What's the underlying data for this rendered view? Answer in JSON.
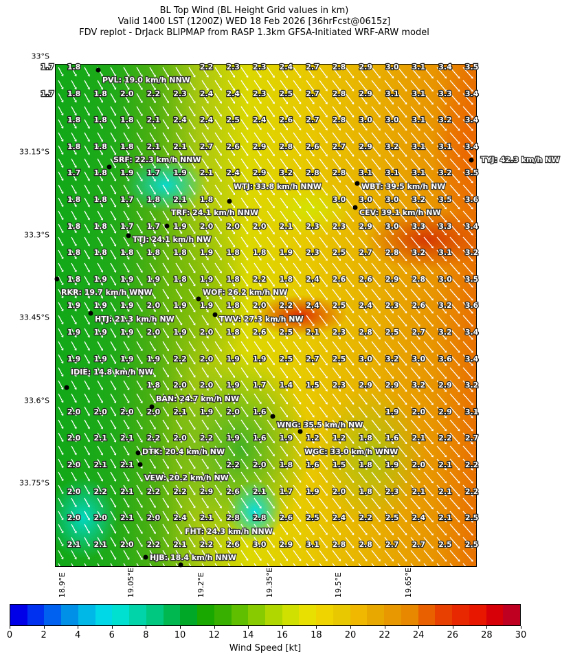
{
  "title": {
    "line1": "BL Top Wind (BL Height Grid values in km)",
    "line2": "Valid 1400 LST (1200Z) WED 18 Feb 2026 [36hrFcst@0615z]",
    "line3": "FDV replot - DrJack BLIPMAP from RASP 1.3km GFSA-Initiated WRF-ARW model"
  },
  "axes": {
    "y_labels": [
      "33°S",
      "33.15°S",
      "33.3°S",
      "33.45°S",
      "33.6°S",
      "33.75°S"
    ],
    "x_labels": [
      "18.9°E",
      "19.05°E",
      "19.2°E",
      "19.35°E",
      "19.5°E",
      "19.65°E"
    ]
  },
  "grid_values": [
    [
      "1.7",
      "1.8",
      null,
      null,
      null,
      null,
      "2.2",
      "2.3",
      "2.3",
      "2.4",
      "2.7",
      "2.8",
      "2.9",
      "3.0",
      "3.1",
      "3.4",
      "3.5"
    ],
    [
      "1.7",
      "1.8",
      "1.8",
      "2.0",
      "2.2",
      "2.3",
      "2.4",
      "2.4",
      "2.3",
      "2.5",
      "2.7",
      "2.8",
      "2.9",
      "3.1",
      "3.1",
      "3.3",
      "3.4"
    ],
    [
      null,
      "1.8",
      "1.8",
      "1.8",
      "2.1",
      "2.4",
      "2.4",
      "2.5",
      "2.4",
      "2.6",
      "2.7",
      "2.8",
      "3.0",
      "3.0",
      "3.1",
      "3.2",
      "3.4"
    ],
    [
      null,
      "1.8",
      "1.8",
      "1.8",
      "2.1",
      "2.1",
      "2.7",
      "2.6",
      "2.9",
      "2.8",
      "2.6",
      "2.7",
      "2.9",
      "3.2",
      "3.1",
      "3.1",
      "3.4"
    ],
    [
      null,
      "1.7",
      "1.8",
      "1.9",
      "1.7",
      "1.9",
      "2.1",
      "2.4",
      "2.9",
      "3.2",
      "2.8",
      "2.8",
      "3.1",
      "3.1",
      "3.1",
      "3.2",
      "3.5"
    ],
    [
      null,
      "1.8",
      "1.8",
      "1.7",
      "1.8",
      "2.1",
      "1.8",
      null,
      null,
      null,
      null,
      "3.0",
      "3.0",
      "3.0",
      "3.2",
      "3.5",
      "3.6"
    ],
    [
      null,
      "1.8",
      "1.8",
      "1.7",
      "1.7",
      "1.9",
      "2.0",
      "2.0",
      "2.0",
      "2.1",
      "2.3",
      "2.3",
      "2.9",
      "3.0",
      "3.3",
      "3.3",
      "3.4"
    ],
    [
      null,
      "1.8",
      "1.8",
      "1.8",
      "1.8",
      "1.8",
      "1.9",
      "1.8",
      "1.8",
      "1.9",
      "2.3",
      "2.5",
      "2.7",
      "2.8",
      "3.2",
      "3.1",
      "3.2"
    ],
    [
      null,
      "1.8",
      "1.9",
      "1.9",
      "1.9",
      "1.8",
      "1.9",
      "1.8",
      "2.2",
      "1.8",
      "2.4",
      "2.6",
      "2.6",
      "2.9",
      "2.8",
      "3.0",
      "3.5"
    ],
    [
      null,
      "1.9",
      "1.9",
      "1.9",
      "2.0",
      "1.9",
      "1.9",
      "1.8",
      "2.0",
      "2.2",
      "2.4",
      "2.5",
      "2.4",
      "2.3",
      "2.6",
      "3.2",
      "3.6"
    ],
    [
      null,
      "1.9",
      "1.9",
      "1.9",
      "2.0",
      "1.9",
      "2.0",
      "1.8",
      "2.6",
      "2.5",
      "2.1",
      "2.3",
      "2.8",
      "2.5",
      "2.7",
      "3.2",
      "3.4"
    ],
    [
      null,
      "1.9",
      "1.9",
      "1.9",
      "1.9",
      "2.2",
      "2.0",
      "1.9",
      "1.9",
      "2.5",
      "2.7",
      "2.5",
      "3.0",
      "3.2",
      "3.0",
      "3.6",
      "3.4"
    ],
    [
      null,
      null,
      null,
      null,
      "1.8",
      "2.0",
      "2.0",
      "1.9",
      "1.7",
      "1.4",
      "1.5",
      "2.3",
      "2.9",
      "2.9",
      "3.2",
      "2.9",
      "3.2"
    ],
    [
      null,
      "2.0",
      "2.0",
      "2.0",
      "2.0",
      "2.1",
      "1.9",
      "2.0",
      "1.6",
      null,
      null,
      null,
      null,
      "1.9",
      "2.0",
      "2.9",
      "3.1"
    ],
    [
      null,
      "2.0",
      "2.1",
      "2.1",
      "2.2",
      "2.0",
      "2.2",
      "1.9",
      "1.6",
      "1.9",
      "1.2",
      "1.2",
      "1.8",
      "1.6",
      "2.1",
      "2.2",
      "2.7"
    ],
    [
      null,
      "2.0",
      "2.1",
      "2.1",
      null,
      null,
      null,
      "2.2",
      "2.0",
      "1.8",
      "1.6",
      "1.5",
      "1.8",
      "1.9",
      "2.0",
      "2.1",
      "2.2"
    ],
    [
      null,
      "2.0",
      "2.2",
      "2.1",
      "2.2",
      "2.2",
      "2.9",
      "2.6",
      "2.1",
      "1.7",
      "1.9",
      "2.0",
      "1.8",
      "2.3",
      "2.1",
      "2.1",
      "2.2"
    ],
    [
      null,
      "2.0",
      "2.0",
      "2.1",
      "2.0",
      "2.4",
      "2.1",
      "2.8",
      "2.8",
      "2.6",
      "2.5",
      "2.4",
      "2.2",
      "2.5",
      "2.4",
      "2.1",
      "2.5"
    ],
    [
      null,
      "2.1",
      "2.1",
      "2.0",
      "2.2",
      "2.1",
      "2.2",
      "2.6",
      "3.0",
      "2.9",
      "3.1",
      "2.8",
      "2.8",
      "2.7",
      "2.7",
      "2.5",
      "2.5"
    ]
  ],
  "stations": [
    {
      "label": "PVL: 19.0 km/h NNW"
    },
    {
      "label": "SRF: 22.3 km/h NNW"
    },
    {
      "label": "TYJ: 42.3 km/h NW"
    },
    {
      "label": "WBT: 39.5 km/h NW"
    },
    {
      "label": "WTJ: 33.8 km/h NNW"
    },
    {
      "label": "CEV: 39.1 km/h NW"
    },
    {
      "label": "TRF: 24.1 km/h NNW"
    },
    {
      "label": "TTJ: 24.1 km/h NW"
    },
    {
      "label": "RKR: 19.7 km/h WNW"
    },
    {
      "label": "WOF: 26.2 km/h NW"
    },
    {
      "label": "HTJ: 21.3 km/h NW"
    },
    {
      "label": "TWV: 27.3 km/h NW"
    },
    {
      "label": "IDIE: 14.8 km/h NW"
    },
    {
      "label": "BAN: 24.7 km/h NW"
    },
    {
      "label": "WNG: 35.5 km/h NW"
    },
    {
      "label": "WGC: 33.0 km/h WNW"
    },
    {
      "label": "DTK: 20.4 km/h NW"
    },
    {
      "label": "VEW: 20.2 km/h NW"
    },
    {
      "label": "HJB: 18.4 km/h NNW"
    },
    {
      "label": "FHT: 24.3 km/h NNW"
    }
  ],
  "colorbar": {
    "label": "Wind Speed [kt]",
    "range": [
      0,
      30
    ],
    "tick_labels": [
      "0",
      "2",
      "4",
      "6",
      "8",
      "10",
      "12",
      "14",
      "16",
      "18",
      "20",
      "22",
      "24",
      "26",
      "28",
      "30"
    ],
    "colors": [
      "#0000e8",
      "#0030f0",
      "#0060f0",
      "#0090e8",
      "#00b8e8",
      "#00d8e8",
      "#00e0d0",
      "#00d4a8",
      "#00c880",
      "#00b850",
      "#00a828",
      "#18a800",
      "#38b000",
      "#60c000",
      "#88cc00",
      "#b0d800",
      "#d0e000",
      "#e8e000",
      "#f0d400",
      "#e8c800",
      "#f0b800",
      "#e8a800",
      "#e89800",
      "#e88800",
      "#e86000",
      "#e84000",
      "#e82800",
      "#e81800",
      "#d80008",
      "#c00020"
    ]
  }
}
